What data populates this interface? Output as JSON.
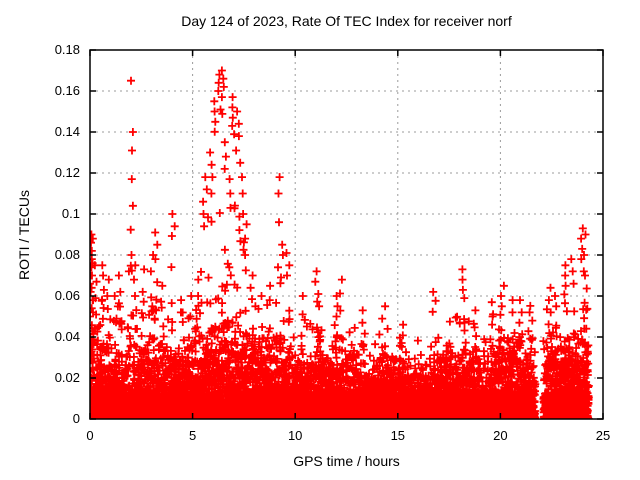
{
  "colors": {
    "marker": "#ff0000",
    "grid": "#9b9b9b",
    "axis": "#000000",
    "text": "#000000",
    "background": "#ffffff"
  },
  "chart_data": {
    "type": "scatter",
    "title": "Day 124 of 2023, Rate Of TEC Index for receiver norf",
    "xlabel": "GPS time / hours",
    "ylabel": "ROTI / TECUs",
    "series_name": "ROTI",
    "xlim": [
      0,
      25
    ],
    "ylim": [
      0,
      0.18
    ],
    "xticks": [
      {
        "v": 0,
        "label": "0"
      },
      {
        "v": 5,
        "label": "5"
      },
      {
        "v": 10,
        "label": "10"
      },
      {
        "v": 15,
        "label": "15"
      },
      {
        "v": 20,
        "label": "20"
      },
      {
        "v": 25,
        "label": "25"
      }
    ],
    "yticks": [
      {
        "v": 0,
        "label": "0"
      },
      {
        "v": 0.02,
        "label": "0.02"
      },
      {
        "v": 0.04,
        "label": "0.04"
      },
      {
        "v": 0.06,
        "label": "0.06"
      },
      {
        "v": 0.08,
        "label": "0.08"
      },
      {
        "v": 0.1,
        "label": "0.1"
      },
      {
        "v": 0.12,
        "label": "0.12"
      },
      {
        "v": 0.14,
        "label": "0.14"
      },
      {
        "v": 0.16,
        "label": "0.16"
      },
      {
        "v": 0.18,
        "label": "0.18"
      }
    ],
    "grid": true,
    "legend": false,
    "marker": {
      "symbol": "+",
      "color": "#ff0000",
      "size": 8
    },
    "data_span_hours": [
      0,
      24.3
    ],
    "gap_hours": [
      21.7,
      22.1
    ],
    "max_value_approx": 0.17,
    "baseline_band": [
      [
        0,
        0.06
      ],
      [
        0.5,
        0.05
      ],
      [
        1,
        0.044
      ],
      [
        1.5,
        0.042
      ],
      [
        2,
        0.046
      ],
      [
        2.5,
        0.044
      ],
      [
        3,
        0.05
      ],
      [
        3.5,
        0.046
      ],
      [
        4,
        0.043
      ],
      [
        4.5,
        0.044
      ],
      [
        5,
        0.048
      ],
      [
        5.5,
        0.052
      ],
      [
        6,
        0.058
      ],
      [
        6.5,
        0.062
      ],
      [
        7,
        0.06
      ],
      [
        7.5,
        0.055
      ],
      [
        8,
        0.05
      ],
      [
        8.5,
        0.05
      ],
      [
        9,
        0.052
      ],
      [
        9.5,
        0.048
      ],
      [
        10,
        0.043
      ],
      [
        10.5,
        0.044
      ],
      [
        11,
        0.047
      ],
      [
        11.5,
        0.042
      ],
      [
        12,
        0.044
      ],
      [
        12.5,
        0.042
      ],
      [
        13,
        0.04
      ],
      [
        13.5,
        0.038
      ],
      [
        14,
        0.042
      ],
      [
        14.5,
        0.04
      ],
      [
        15,
        0.036
      ],
      [
        15.5,
        0.035
      ],
      [
        16,
        0.035
      ],
      [
        16.5,
        0.037
      ],
      [
        17,
        0.04
      ],
      [
        17.5,
        0.043
      ],
      [
        18,
        0.046
      ],
      [
        18.5,
        0.043
      ],
      [
        19,
        0.041
      ],
      [
        19.5,
        0.044
      ],
      [
        20,
        0.05
      ],
      [
        20.5,
        0.05
      ],
      [
        21,
        0.052
      ],
      [
        21.5,
        0.05
      ],
      [
        21.7,
        0.046
      ],
      [
        22.1,
        0.048
      ],
      [
        22.6,
        0.05
      ],
      [
        23,
        0.05
      ],
      [
        23.5,
        0.054
      ],
      [
        24,
        0.052
      ],
      [
        24.3,
        0.046
      ]
    ],
    "spikes": [
      {
        "t": 0.05,
        "values": [
          0.09,
          0.086,
          0.082,
          0.078,
          0.074,
          0.07,
          0.066,
          0.062,
          0.058,
          0.054,
          0.05
        ]
      },
      {
        "t": 0.15,
        "values": [
          0.088,
          0.082,
          0.076,
          0.07,
          0.064,
          0.058,
          0.052
        ]
      },
      {
        "t": 0.3,
        "values": [
          0.075,
          0.067,
          0.059,
          0.051
        ]
      },
      {
        "t": 0.6,
        "values": [
          0.075,
          0.07,
          0.063
        ]
      },
      {
        "t": 0.85,
        "values": [
          0.068,
          0.06
        ]
      },
      {
        "t": 1.2,
        "values": [
          0.06
        ]
      },
      {
        "t": 1.45,
        "values": [
          0.07,
          0.062
        ]
      },
      {
        "t": 1.95,
        "values": [
          0.08,
          0.072
        ]
      },
      {
        "t": 2.05,
        "values": [
          0.165,
          0.14,
          0.131,
          0.117,
          0.104
        ]
      },
      {
        "t": 2.2,
        "values": [
          0.075,
          0.068,
          0.06
        ]
      },
      {
        "t": 2.6,
        "values": [
          0.073,
          0.062
        ]
      },
      {
        "t": 3.0,
        "values": [
          0.08,
          0.072
        ]
      },
      {
        "t": 3.2,
        "values": [
          0.091,
          0.085,
          0.078
        ]
      },
      {
        "t": 3.55,
        "values": [
          0.065
        ]
      },
      {
        "t": 4.06,
        "values": [
          0.1,
          0.094
        ]
      },
      {
        "t": 4.5,
        "values": [
          0.058
        ]
      },
      {
        "t": 4.9,
        "values": [
          0.06
        ]
      },
      {
        "t": 5.2,
        "values": [
          0.068,
          0.06
        ]
      },
      {
        "t": 5.5,
        "values": [
          0.106,
          0.1,
          0.094
        ]
      },
      {
        "t": 5.7,
        "values": [
          0.118,
          0.112
        ]
      },
      {
        "t": 5.9,
        "values": [
          0.13,
          0.124,
          0.118,
          0.11
        ]
      },
      {
        "t": 6.1,
        "values": [
          0.155,
          0.15,
          0.145
        ]
      },
      {
        "t": 6.3,
        "values": [
          0.168,
          0.164,
          0.16,
          0.151
        ]
      },
      {
        "t": 6.45,
        "values": [
          0.17,
          0.166,
          0.162,
          0.157
        ]
      },
      {
        "t": 6.6,
        "values": [
          0.135,
          0.128,
          0.122
        ]
      },
      {
        "t": 6.8,
        "values": [
          0.117,
          0.11,
          0.103
        ]
      },
      {
        "t": 7.0,
        "values": [
          0.157,
          0.152,
          0.147
        ]
      },
      {
        "t": 7.2,
        "values": [
          0.15,
          0.144,
          0.138,
          0.131
        ]
      },
      {
        "t": 7.4,
        "values": [
          0.125,
          0.118,
          0.11,
          0.1
        ]
      },
      {
        "t": 7.6,
        "values": [
          0.095,
          0.088,
          0.08
        ]
      },
      {
        "t": 7.9,
        "values": [
          0.07,
          0.064
        ]
      },
      {
        "t": 8.3,
        "values": [
          0.06
        ]
      },
      {
        "t": 8.7,
        "values": [
          0.065,
          0.058
        ]
      },
      {
        "t": 9.2,
        "values": [
          0.118,
          0.11,
          0.096
        ]
      },
      {
        "t": 9.35,
        "values": [
          0.085,
          0.08
        ]
      },
      {
        "t": 9.65,
        "values": [
          0.081,
          0.075,
          0.07
        ]
      },
      {
        "t": 10.4,
        "values": [
          0.06
        ]
      },
      {
        "t": 11.0,
        "values": [
          0.072,
          0.067
        ]
      },
      {
        "t": 11.2,
        "values": [
          0.061,
          0.055
        ]
      },
      {
        "t": 12.0,
        "values": [
          0.06,
          0.055,
          0.05
        ]
      },
      {
        "t": 12.25,
        "values": [
          0.068
        ]
      },
      {
        "t": 13.3,
        "values": [
          0.053,
          0.047
        ]
      },
      {
        "t": 14.3,
        "values": [
          0.055,
          0.049
        ]
      },
      {
        "t": 15.2,
        "values": [
          0.046
        ]
      },
      {
        "t": 16.8,
        "values": [
          0.062
        ]
      },
      {
        "t": 18.2,
        "values": [
          0.073,
          0.068,
          0.063,
          0.059
        ]
      },
      {
        "t": 18.8,
        "values": [
          0.053
        ]
      },
      {
        "t": 19.6,
        "values": [
          0.057
        ]
      },
      {
        "t": 20.1,
        "values": [
          0.065,
          0.06,
          0.055
        ]
      },
      {
        "t": 20.6,
        "values": [
          0.058,
          0.052
        ]
      },
      {
        "t": 21.0,
        "values": [
          0.058,
          0.052,
          0.047
        ]
      },
      {
        "t": 21.5,
        "values": [
          0.052,
          0.048
        ]
      },
      {
        "t": 22.4,
        "values": [
          0.064,
          0.058,
          0.052
        ]
      },
      {
        "t": 22.7,
        "values": [
          0.06,
          0.055
        ]
      },
      {
        "t": 23.2,
        "values": [
          0.075,
          0.07,
          0.065
        ]
      },
      {
        "t": 23.5,
        "values": [
          0.078,
          0.072,
          0.066
        ]
      },
      {
        "t": 24.0,
        "values": [
          0.093,
          0.088,
          0.083,
          0.078,
          0.072
        ]
      },
      {
        "t": 24.15,
        "values": [
          0.09,
          0.08,
          0.07
        ]
      }
    ],
    "seed": 124,
    "render": {
      "columns": 2400
    }
  }
}
